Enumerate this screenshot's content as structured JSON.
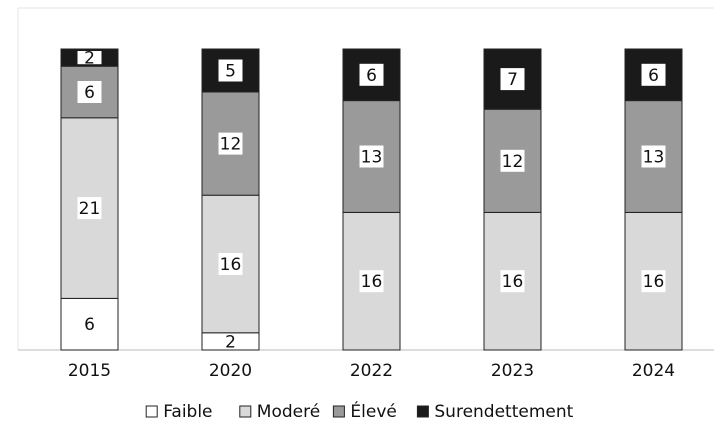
{
  "chart_data": {
    "type": "stacked_bar",
    "categories": [
      "2015",
      "2020",
      "2022",
      "2023",
      "2024"
    ],
    "series": [
      {
        "name": "Faible",
        "color": "#ffffff",
        "values": [
          6,
          2,
          null,
          null,
          null
        ]
      },
      {
        "name": "Moderé",
        "color": "#d9d9d9",
        "values": [
          21,
          16,
          16,
          16,
          16
        ]
      },
      {
        "name": "Élevé",
        "color": "#9a9a9a",
        "values": [
          6,
          12,
          13,
          12,
          13
        ]
      },
      {
        "name": "Surendettement",
        "color": "#1a1a1a",
        "values": [
          2,
          5,
          6,
          7,
          6
        ]
      }
    ],
    "ylim": [
      0,
      35
    ],
    "legend": "bottom"
  }
}
